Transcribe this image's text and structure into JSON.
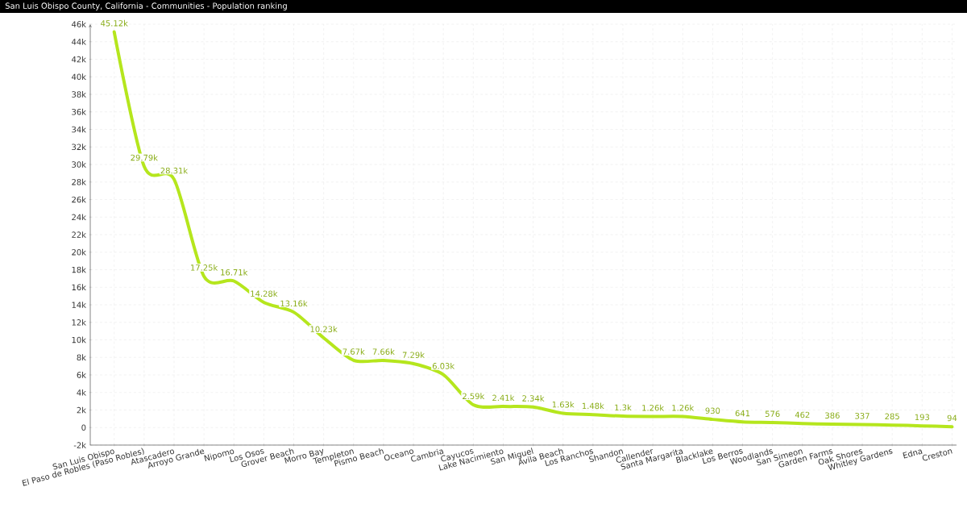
{
  "chart_data": {
    "type": "line",
    "title": "San Luis Obispo County, California - Communities - Population ranking",
    "categories": [
      "San Luis Obispo",
      "El Paso de Robles (Paso Robles)",
      "Atascadero",
      "Arroyo Grande",
      "Nipomo",
      "Los Osos",
      "Grover Beach",
      "Morro Bay",
      "Templeton",
      "Pismo Beach",
      "Oceano",
      "Cambria",
      "Cayucos",
      "Lake Nacimiento",
      "San Miguel",
      "Avila Beach",
      "Los Ranchos",
      "Shandon",
      "Callender",
      "Santa Margarita",
      "Blacklake",
      "Los Berros",
      "Woodlands",
      "San Simeon",
      "Garden Farms",
      "Oak Shores",
      "Whitley Gardens",
      "Edna",
      "Creston"
    ],
    "values": [
      45120,
      29790,
      28310,
      17250,
      16710,
      14280,
      13160,
      10230,
      7670,
      7660,
      7290,
      6030,
      2590,
      2410,
      2340,
      1630,
      1480,
      1300,
      1260,
      1260,
      930,
      641,
      576,
      462,
      386,
      337,
      285,
      193,
      94
    ],
    "value_labels": [
      "45.12k",
      "29.79k",
      "28.31k",
      "17.25k",
      "16.71k",
      "14.28k",
      "13.16k",
      "10.23k",
      "7.67k",
      "7.66k",
      "7.29k",
      "6.03k",
      "2.59k",
      "2.41k",
      "2.34k",
      "1.63k",
      "1.48k",
      "1.3k",
      "1.26k",
      "1.26k",
      "930",
      "641",
      "576",
      "462",
      "386",
      "337",
      "285",
      "193",
      "94"
    ],
    "color": "#b5e61d",
    "line_style": "solid",
    "ylim": [
      -2000,
      46000
    ],
    "yticks": [
      {
        "value": -2000,
        "label": "-2k"
      },
      0,
      {
        "value": 2000,
        "label": "2k"
      },
      {
        "value": 4000,
        "label": "4k"
      },
      {
        "value": 6000,
        "label": "6k"
      },
      {
        "value": 8000,
        "label": "8k"
      },
      {
        "value": 10000,
        "label": "10k"
      },
      {
        "value": 12000,
        "label": "12k"
      },
      {
        "value": 14000,
        "label": "14k"
      },
      {
        "value": 16000,
        "label": "16k"
      },
      {
        "value": 18000,
        "label": "18k"
      },
      {
        "value": 20000,
        "label": "20k"
      },
      {
        "value": 22000,
        "label": "22k"
      },
      {
        "value": 24000,
        "label": "24k"
      },
      {
        "value": 26000,
        "label": "26k"
      },
      {
        "value": 28000,
        "label": "28k"
      },
      {
        "value": 30000,
        "label": "30k"
      },
      {
        "value": 32000,
        "label": "32k"
      },
      {
        "value": 34000,
        "label": "34k"
      },
      {
        "value": 36000,
        "label": "36k"
      },
      {
        "value": 38000,
        "label": "38k"
      },
      {
        "value": 40000,
        "label": "40k"
      },
      {
        "value": 42000,
        "label": "42k"
      },
      {
        "value": 44000,
        "label": "44k"
      },
      {
        "value": 46000,
        "label": "46k"
      }
    ],
    "grid": true
  }
}
